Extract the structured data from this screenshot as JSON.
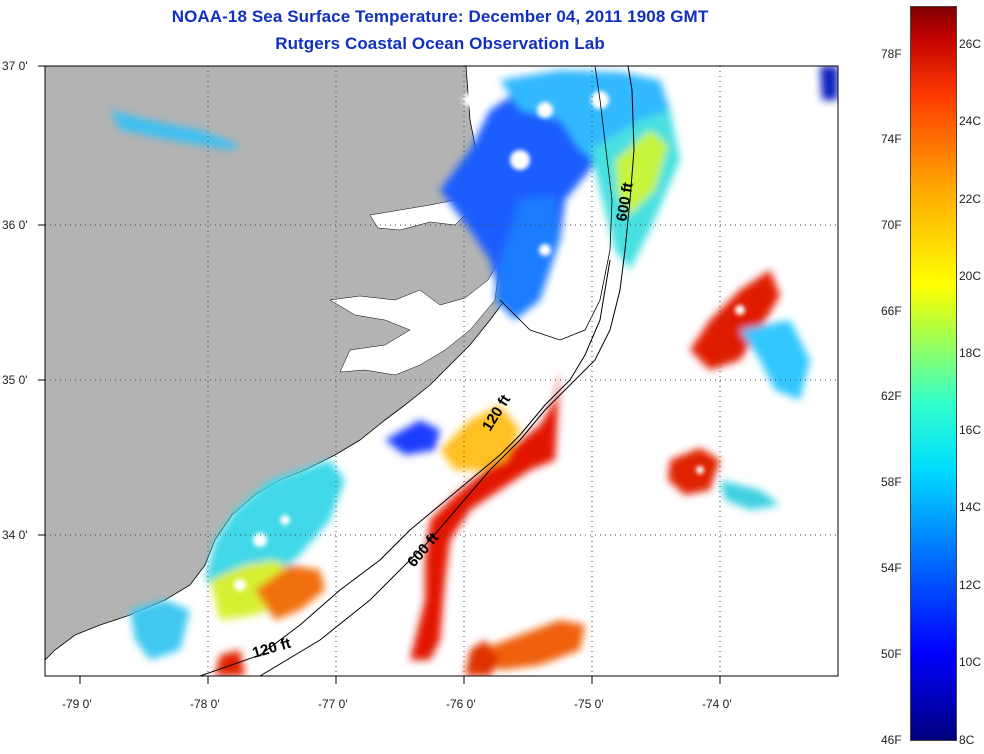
{
  "title": "NOAA-18 Sea Surface Temperature:  December 04, 2011 1908 GMT",
  "subtitle": "Rutgers Coastal Ocean Observation Lab",
  "lat_labels": [
    "37 0'",
    "36 0'",
    "35 0'",
    "34 0'"
  ],
  "lon_labels": [
    "-79 0'",
    "-78 0'",
    "-77 0'",
    "-76 0'",
    "-75 0'",
    "-74 0'"
  ],
  "depth_labels": {
    "a": "600 ft",
    "b": "120 ft",
    "c": "600 ft",
    "d": "120 ft"
  },
  "colorbar": {
    "fahrenheit": [
      "78F",
      "74F",
      "70F",
      "66F",
      "62F",
      "58F",
      "54F",
      "50F",
      "46F"
    ],
    "celsius": [
      "26C",
      "24C",
      "22C",
      "20C",
      "18C",
      "16C",
      "14C",
      "12C",
      "10C",
      "8C"
    ]
  },
  "colors": {
    "land": "#b3b3b3",
    "title": "#1030c0",
    "grid": "#555555"
  }
}
